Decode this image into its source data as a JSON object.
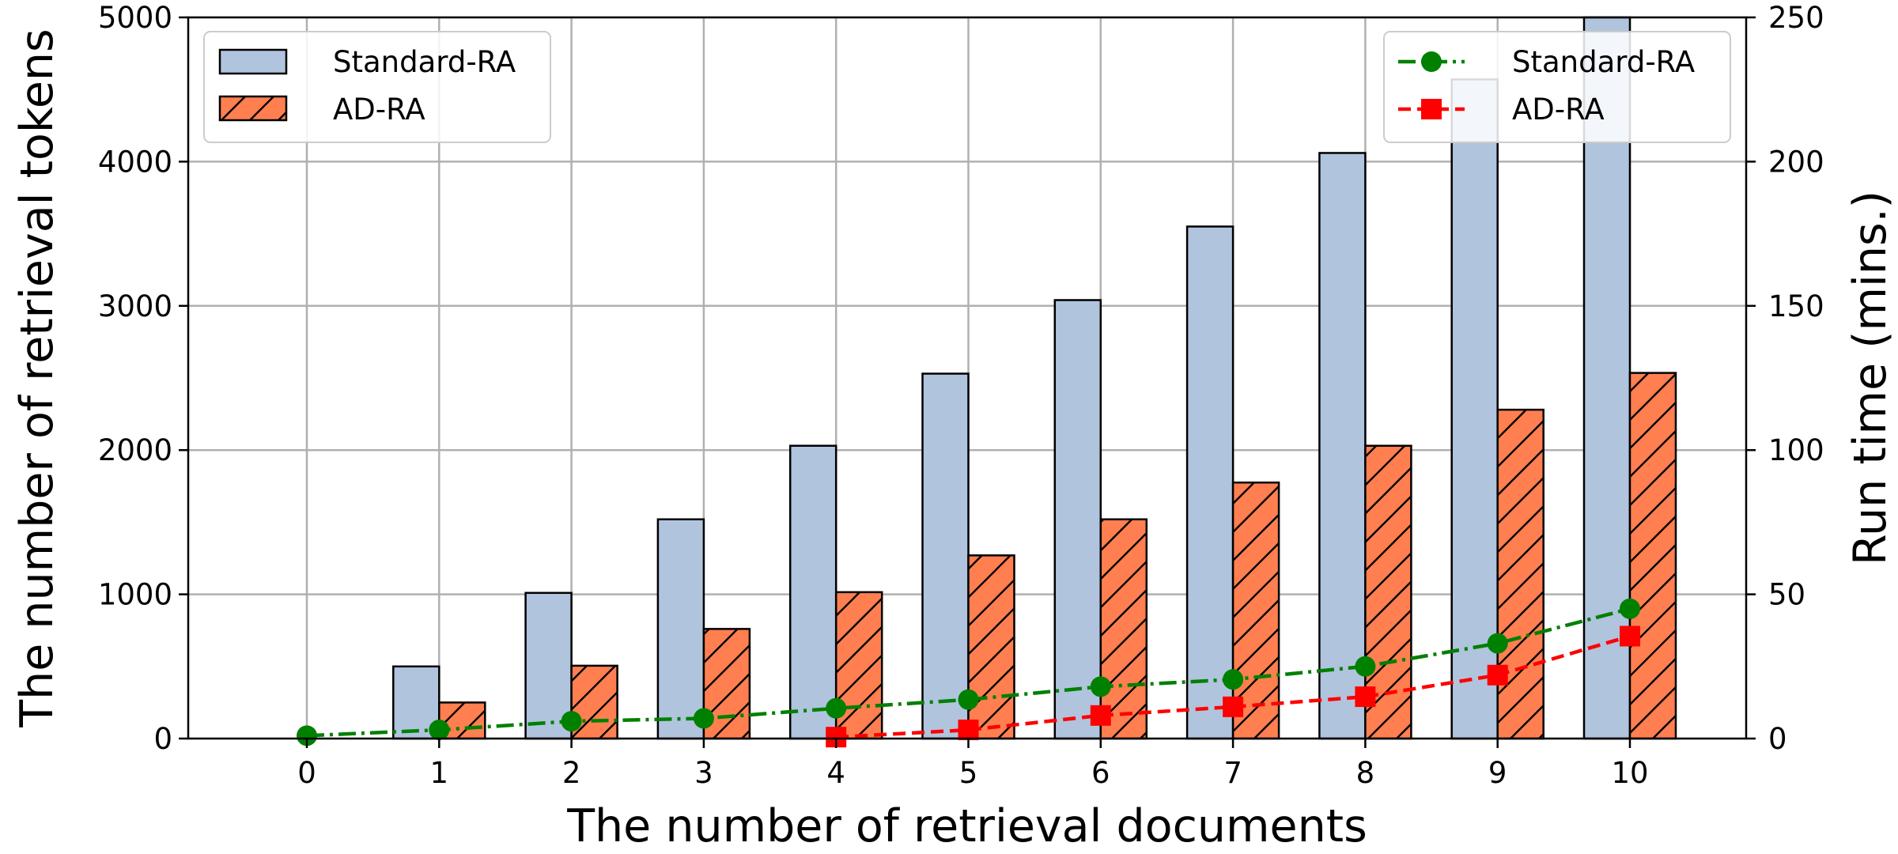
{
  "chart_data": {
    "type": "bar",
    "categories": [
      "0",
      "1",
      "2",
      "3",
      "4",
      "5",
      "6",
      "7",
      "8",
      "9",
      "10"
    ],
    "xlabel": "The number of retrieval documents",
    "ylabel": "The number of retrieval tokens",
    "ylabel_right": "Run time (mins.)",
    "ylim": [
      0,
      5000
    ],
    "ylim_right": [
      0,
      250
    ],
    "yticks": [
      "0",
      "1000",
      "2000",
      "3000",
      "4000",
      "5000"
    ],
    "yticks_right": [
      "0",
      "50",
      "100",
      "150",
      "200",
      "250"
    ],
    "grid": true,
    "bar_series": [
      {
        "name": "Standard-RA",
        "color": "#b0c4de",
        "hatch": false,
        "values": [
          0,
          500,
          1010,
          1520,
          2030,
          2530,
          3040,
          3550,
          4060,
          4570,
          5070
        ]
      },
      {
        "name": "AD-RA",
        "color": "#ff7f50",
        "hatch": true,
        "values": [
          0,
          250,
          505,
          760,
          1015,
          1270,
          1520,
          1775,
          2030,
          2280,
          2535
        ]
      }
    ],
    "line_series": [
      {
        "name": "Standard-RA",
        "color": "#008000",
        "marker": "circle",
        "linestyle": "dashdot",
        "values": [
          1,
          3,
          6,
          7,
          10.5,
          13.5,
          18,
          20.5,
          25,
          33,
          45
        ]
      },
      {
        "name": "AD-RA",
        "color": "#ff0000",
        "marker": "square",
        "linestyle": "dashed",
        "values": [
          null,
          null,
          null,
          null,
          0.5,
          3,
          8,
          11,
          14.5,
          22,
          35.5
        ]
      }
    ],
    "legend_bars_position": "top-left",
    "legend_lines_position": "top-right"
  }
}
